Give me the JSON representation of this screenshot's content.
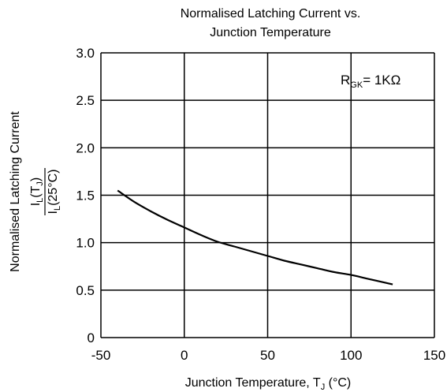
{
  "chart_data": {
    "type": "line",
    "title_line1": "Normalised Latching Current vs.",
    "title_line2": "Junction Temperature",
    "xlabel": "Junction Temperature, T",
    "xlabel_sub": "J",
    "xlabel_unit": " (°C)",
    "ylabel": "Normalised Latching Current",
    "ylabel_fraction": {
      "num_main": "I",
      "num_sub": "L",
      "num_arg": "(T",
      "num_arg_sub": "J",
      "num_close": ")",
      "den_main": "I",
      "den_sub": "L",
      "den_arg": "(25°C)"
    },
    "annotation": {
      "main": "R",
      "sub": "GK",
      "rest": "= 1KΩ"
    },
    "xlim": [
      -50,
      150
    ],
    "ylim": [
      0,
      3.0
    ],
    "x_ticks": [
      -50,
      0,
      50,
      100,
      150
    ],
    "x_tick_labels": [
      "-50",
      "0",
      "50",
      "100",
      "150"
    ],
    "y_ticks": [
      0,
      0.5,
      1.0,
      1.5,
      2.0,
      2.5,
      3.0
    ],
    "y_tick_labels": [
      "0",
      "0.5",
      "1.0",
      "1.5",
      "2.0",
      "2.5",
      "3.0"
    ],
    "grid": true,
    "series": [
      {
        "x": [
          -40,
          -30,
          -20,
          -10,
          0,
          10,
          20,
          30,
          40,
          50,
          60,
          70,
          80,
          90,
          100,
          110,
          125
        ],
        "y": [
          1.55,
          1.43,
          1.33,
          1.24,
          1.16,
          1.08,
          1.01,
          0.96,
          0.91,
          0.86,
          0.81,
          0.77,
          0.73,
          0.69,
          0.66,
          0.62,
          0.56
        ]
      }
    ]
  }
}
